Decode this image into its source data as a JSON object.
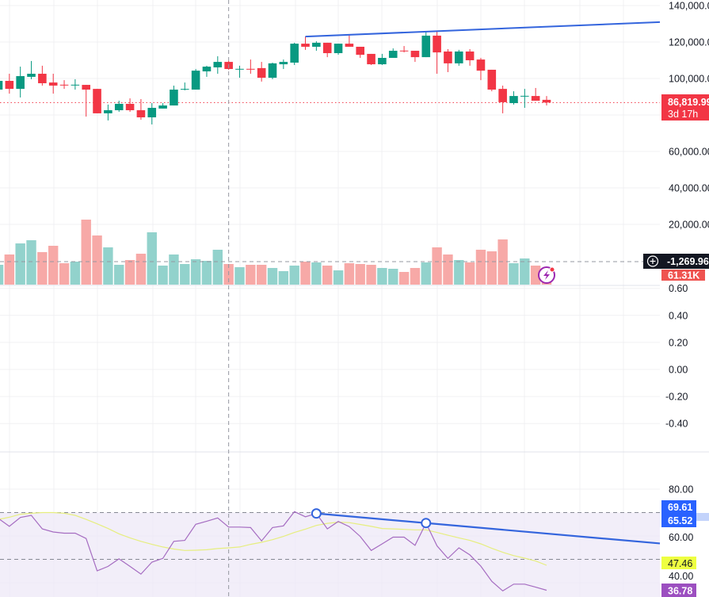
{
  "colors": {
    "up": "#089981",
    "down": "#f23645",
    "volume_up": "#92d2cc",
    "volume_down": "#f7a9a7",
    "rsi": "#a56cc1",
    "rsi_ma": "#e6ee7f",
    "trendline": "#3465dd",
    "rsi_band": "#ede7f6",
    "grid": "#f0f0f3",
    "crosshair": "#9598a1"
  },
  "price_axis": {
    "ticks": [
      "140,000.00",
      "120,000.00",
      "100,000.00",
      "60,000.00",
      "40,000.00",
      "20,000.00"
    ],
    "tick_values": [
      140000,
      120000,
      100000,
      60000,
      40000,
      20000
    ],
    "last_price": "86,819.99",
    "countdown": "3d 17h",
    "crosshair_value": "-1,269.96",
    "volume_last": "61.31K"
  },
  "indicator_axis": {
    "ticks": [
      "0.60",
      "0.40",
      "0.20",
      "0.00",
      "-0.20",
      "-0.40"
    ],
    "tick_values": [
      0.6,
      0.4,
      0.2,
      0,
      -0.2,
      -0.4
    ]
  },
  "rsi_axis": {
    "ticks": [
      "80.00",
      "60.00",
      "40.00"
    ],
    "tick_values": [
      80,
      60,
      40
    ],
    "trend_label_1": "69.61",
    "trend_label_2": "65.52",
    "ma_value": "47.46",
    "rsi_value": "36.78"
  },
  "chart_data": {
    "type": "candlestick",
    "ohlc": [
      [
        93900,
        100000,
        92600,
        98700
      ],
      [
        98700,
        102600,
        91700,
        94300
      ],
      [
        94300,
        106500,
        89600,
        101300
      ],
      [
        100900,
        109600,
        99600,
        102600
      ],
      [
        102600,
        107000,
        96100,
        97400
      ],
      [
        97800,
        102600,
        91700,
        96100
      ],
      [
        96600,
        99100,
        94300,
        96400
      ],
      [
        96400,
        99600,
        93900,
        96600
      ],
      [
        96500,
        96500,
        79100,
        93900
      ],
      [
        94300,
        94300,
        80900,
        80900
      ],
      [
        80900,
        85700,
        77000,
        82600
      ],
      [
        82600,
        87800,
        81700,
        86100
      ],
      [
        86100,
        89100,
        81700,
        82600
      ],
      [
        82600,
        88700,
        77400,
        78700
      ],
      [
        78700,
        86500,
        74800,
        83900
      ],
      [
        83500,
        86500,
        83500,
        85200
      ],
      [
        85200,
        96100,
        85200,
        93900
      ],
      [
        93900,
        97800,
        93500,
        94300
      ],
      [
        93900,
        105200,
        93900,
        104300
      ],
      [
        103900,
        107000,
        100900,
        106500
      ],
      [
        106100,
        112200,
        102600,
        109100
      ],
      [
        109100,
        109600,
        104800,
        105200
      ],
      [
        105100,
        107000,
        100400,
        105300
      ],
      [
        105300,
        110400,
        102600,
        105100
      ],
      [
        105700,
        109100,
        98300,
        100400
      ],
      [
        100400,
        108700,
        99600,
        108300
      ],
      [
        107800,
        110400,
        105200,
        109100
      ],
      [
        108700,
        119600,
        107400,
        119100
      ],
      [
        119100,
        123000,
        115700,
        117400
      ],
      [
        117400,
        120400,
        115200,
        119600
      ],
      [
        119600,
        119600,
        111700,
        113900
      ],
      [
        113900,
        119100,
        113000,
        119100
      ],
      [
        119100,
        124300,
        117400,
        117400
      ],
      [
        117400,
        117400,
        111300,
        113000
      ],
      [
        113500,
        113500,
        107400,
        107800
      ],
      [
        107800,
        113500,
        107400,
        111300
      ],
      [
        111300,
        116500,
        111300,
        115200
      ],
      [
        115300,
        117800,
        114300,
        115100
      ],
      [
        115200,
        115200,
        109100,
        111700
      ],
      [
        111700,
        125700,
        111700,
        123500
      ],
      [
        123500,
        125700,
        102600,
        114300
      ],
      [
        114800,
        116100,
        103500,
        108300
      ],
      [
        108300,
        115700,
        107000,
        114800
      ],
      [
        114800,
        116100,
        107000,
        110000
      ],
      [
        110400,
        111300,
        99100,
        104300
      ],
      [
        104800,
        104800,
        93000,
        93900
      ],
      [
        94300,
        96100,
        80900,
        87000
      ],
      [
        86500,
        93000,
        85700,
        90400
      ],
      [
        90300,
        94300,
        83900,
        90500
      ],
      [
        90400,
        94800,
        87800,
        87800
      ],
      [
        88300,
        90400,
        85200,
        86819.99
      ]
    ],
    "volume_k": [
      76.8,
      116.7,
      159.6,
      171.9,
      125.9,
      150.4,
      82.9,
      89.0,
      251.7,
      190.3,
      144.3,
      76.8,
      95.2,
      119.7,
      202.6,
      73.7,
      116.7,
      79.8,
      98.2,
      92.1,
      135.1,
      79.8,
      67.5,
      76.8,
      76.8,
      64.5,
      52.2,
      73.7,
      89.0,
      86.0,
      73.7,
      55.3,
      82.9,
      79.8,
      76.8,
      64.5,
      61.4,
      49.1,
      64.5,
      86.0,
      144.3,
      116.7,
      95.2,
      86.0,
      135.1,
      128.9,
      175.0,
      82.9,
      101.3,
      73.7,
      61.31
    ],
    "rsi": [
      67.5,
      64.1,
      67.9,
      68.8,
      63.0,
      61.7,
      61.2,
      61.2,
      58.9,
      45.1,
      47.0,
      50.2,
      47.0,
      43.7,
      48.8,
      50.4,
      57.7,
      58.1,
      65.0,
      66.3,
      67.7,
      63.8,
      63.8,
      63.6,
      57.9,
      63.6,
      64.3,
      70.4,
      68.2,
      69.61,
      63.0,
      66.2,
      64.0,
      59.8,
      53.8,
      56.6,
      59.5,
      59.5,
      56.0,
      65.52,
      55.8,
      50.4,
      54.9,
      51.9,
      47.1,
      40.6,
      36.5,
      39.4,
      39.4,
      38.1,
      36.78
    ],
    "rsi_ma": [
      67.1,
      68.0,
      69.3,
      69.7,
      70.0,
      70.0,
      69.7,
      68.8,
      67.1,
      65.2,
      63.2,
      60.9,
      59.2,
      57.7,
      56.4,
      55.3,
      54.4,
      53.8,
      53.9,
      54.1,
      54.6,
      54.9,
      55.3,
      56.4,
      57.3,
      58.4,
      59.8,
      61.5,
      62.9,
      64.5,
      65.4,
      65.9,
      65.7,
      64.9,
      64.1,
      63.2,
      63.0,
      62.8,
      62.6,
      62.6,
      61.5,
      60.3,
      59.2,
      58.1,
      56.6,
      54.7,
      53.0,
      51.6,
      50.5,
      49.3,
      47.46
    ],
    "rsi_levels": [
      70,
      50
    ],
    "price_trendline": [
      {
        "bar": 28,
        "price": 123000
      },
      {
        "bar": 39,
        "price": 125700
      }
    ],
    "rsi_trendline": [
      {
        "bar": 29,
        "value": 69.61
      },
      {
        "bar": 39,
        "value": 65.52
      }
    ],
    "ylim_price": [
      0,
      140000
    ],
    "ylim_rsi": [
      36,
      80
    ],
    "crosshair_bar": 21
  }
}
